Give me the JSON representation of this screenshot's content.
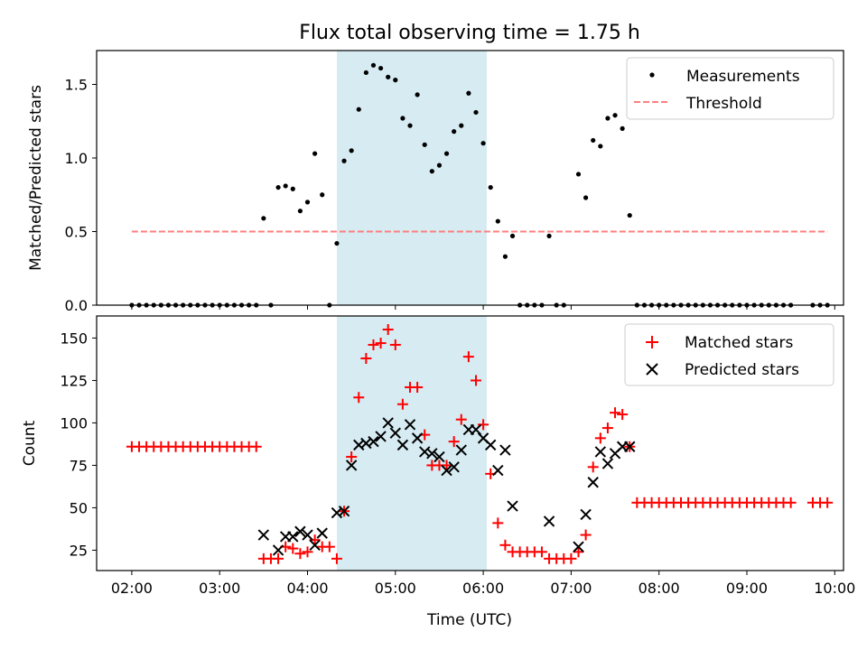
{
  "chart_data": [
    {
      "type": "scatter",
      "title": "Flux total observing time = 1.75 h",
      "xlabel": "",
      "ylabel": "Matched/Predicted stars",
      "xlim": [
        "01:36",
        "10:06"
      ],
      "ylim": [
        0,
        1.73
      ],
      "yticks": [
        "0.0",
        "0.5",
        "1.0",
        "1.5"
      ],
      "xticks": [
        "02:00",
        "03:00",
        "04:00",
        "05:00",
        "06:00",
        "07:00",
        "08:00",
        "09:00",
        "10:00"
      ],
      "show_xticklabels": false,
      "shaded_interval": {
        "start": "04:24",
        "end": "06:09",
        "color": "#add8e6"
      },
      "legend_position": "upper right",
      "series": [
        {
          "name": "Measurements",
          "marker": "dot",
          "color": "#000000",
          "points": [
            [
              "02:00",
              0
            ],
            [
              "02:05",
              0
            ],
            [
              "02:10",
              0
            ],
            [
              "02:15",
              0
            ],
            [
              "02:20",
              0
            ],
            [
              "02:25",
              0
            ],
            [
              "02:30",
              0
            ],
            [
              "02:35",
              0
            ],
            [
              "02:40",
              0
            ],
            [
              "02:45",
              0
            ],
            [
              "02:50",
              0
            ],
            [
              "02:55",
              0
            ],
            [
              "03:00",
              0
            ],
            [
              "03:05",
              0
            ],
            [
              "03:10",
              0
            ],
            [
              "03:15",
              0
            ],
            [
              "03:20",
              0
            ],
            [
              "03:25",
              0
            ],
            [
              "03:30",
              0.59
            ],
            [
              "03:35",
              0
            ],
            [
              "03:40",
              0.8
            ],
            [
              "03:45",
              0.81
            ],
            [
              "03:50",
              0.79
            ],
            [
              "03:55",
              0.64
            ],
            [
              "04:00",
              0.7
            ],
            [
              "04:05",
              1.03
            ],
            [
              "04:10",
              0.75
            ],
            [
              "04:15",
              0
            ],
            [
              "04:20",
              0.42
            ],
            [
              "04:25",
              0.98
            ],
            [
              "04:30",
              1.05
            ],
            [
              "04:35",
              1.33
            ],
            [
              "04:40",
              1.58
            ],
            [
              "04:45",
              1.63
            ],
            [
              "04:50",
              1.61
            ],
            [
              "04:55",
              1.55
            ],
            [
              "05:00",
              1.53
            ],
            [
              "05:05",
              1.27
            ],
            [
              "05:10",
              1.22
            ],
            [
              "05:15",
              1.43
            ],
            [
              "05:20",
              1.09
            ],
            [
              "05:25",
              0.91
            ],
            [
              "05:30",
              0.95
            ],
            [
              "05:35",
              1.03
            ],
            [
              "05:40",
              1.18
            ],
            [
              "05:45",
              1.22
            ],
            [
              "05:50",
              1.44
            ],
            [
              "05:55",
              1.31
            ],
            [
              "06:00",
              1.1
            ],
            [
              "06:05",
              0.8
            ],
            [
              "06:10",
              0.57
            ],
            [
              "06:15",
              0.33
            ],
            [
              "06:20",
              0.47
            ],
            [
              "06:25",
              0
            ],
            [
              "06:30",
              0
            ],
            [
              "06:35",
              0
            ],
            [
              "06:40",
              0
            ],
            [
              "06:45",
              0.47
            ],
            [
              "06:50",
              0
            ],
            [
              "06:55",
              0
            ],
            [
              "07:05",
              0.89
            ],
            [
              "07:10",
              0.73
            ],
            [
              "07:15",
              1.12
            ],
            [
              "07:20",
              1.08
            ],
            [
              "07:25",
              1.27
            ],
            [
              "07:30",
              1.29
            ],
            [
              "07:35",
              1.2
            ],
            [
              "07:40",
              0.61
            ],
            [
              "07:45",
              0
            ],
            [
              "07:50",
              0
            ],
            [
              "07:55",
              0
            ],
            [
              "08:00",
              0
            ],
            [
              "08:05",
              0
            ],
            [
              "08:10",
              0
            ],
            [
              "08:15",
              0
            ],
            [
              "08:20",
              0
            ],
            [
              "08:25",
              0
            ],
            [
              "08:30",
              0
            ],
            [
              "08:35",
              0
            ],
            [
              "08:40",
              0
            ],
            [
              "08:45",
              0
            ],
            [
              "08:50",
              0
            ],
            [
              "08:55",
              0
            ],
            [
              "09:00",
              0
            ],
            [
              "09:05",
              0
            ],
            [
              "09:10",
              0
            ],
            [
              "09:15",
              0
            ],
            [
              "09:20",
              0
            ],
            [
              "09:25",
              0
            ],
            [
              "09:30",
              0
            ],
            [
              "09:45",
              0
            ],
            [
              "09:50",
              0
            ],
            [
              "09:55",
              0
            ]
          ]
        },
        {
          "name": "Threshold",
          "type": "dashed-line",
          "color": "#ff7f7f",
          "points": [
            [
              "02:00",
              0.5
            ],
            [
              "09:55",
              0.5
            ]
          ]
        }
      ]
    },
    {
      "type": "scatter",
      "title": "",
      "xlabel": "Time (UTC)",
      "ylabel": "Count",
      "xlim": [
        "01:36",
        "10:06"
      ],
      "ylim": [
        13,
        163
      ],
      "yticks": [
        "25",
        "50",
        "75",
        "100",
        "125",
        "150"
      ],
      "xticks": [
        "02:00",
        "03:00",
        "04:00",
        "05:00",
        "06:00",
        "07:00",
        "08:00",
        "09:00",
        "10:00"
      ],
      "show_xticklabels": true,
      "shaded_interval": {
        "start": "04:24",
        "end": "06:09",
        "color": "#add8e6"
      },
      "legend_position": "upper right",
      "series": [
        {
          "name": "Matched stars",
          "marker": "plus",
          "color": "#ff0000",
          "points": [
            [
              "02:00",
              86
            ],
            [
              "02:05",
              86
            ],
            [
              "02:10",
              86
            ],
            [
              "02:15",
              86
            ],
            [
              "02:20",
              86
            ],
            [
              "02:25",
              86
            ],
            [
              "02:30",
              86
            ],
            [
              "02:35",
              86
            ],
            [
              "02:40",
              86
            ],
            [
              "02:45",
              86
            ],
            [
              "02:50",
              86
            ],
            [
              "02:55",
              86
            ],
            [
              "03:00",
              86
            ],
            [
              "03:05",
              86
            ],
            [
              "03:10",
              86
            ],
            [
              "03:15",
              86
            ],
            [
              "03:20",
              86
            ],
            [
              "03:25",
              86
            ],
            [
              "03:30",
              20
            ],
            [
              "03:35",
              20
            ],
            [
              "03:40",
              20
            ],
            [
              "03:45",
              27
            ],
            [
              "03:50",
              26
            ],
            [
              "03:55",
              23
            ],
            [
              "04:00",
              24
            ],
            [
              "04:05",
              31
            ],
            [
              "04:10",
              27
            ],
            [
              "04:15",
              27
            ],
            [
              "04:20",
              20
            ],
            [
              "04:25",
              48
            ],
            [
              "04:30",
              80
            ],
            [
              "04:35",
              115
            ],
            [
              "04:40",
              138
            ],
            [
              "04:45",
              146
            ],
            [
              "04:50",
              147
            ],
            [
              "04:55",
              155
            ],
            [
              "05:00",
              146
            ],
            [
              "05:05",
              111
            ],
            [
              "05:10",
              121
            ],
            [
              "05:15",
              121
            ],
            [
              "05:20",
              93
            ],
            [
              "05:25",
              75
            ],
            [
              "05:30",
              75
            ],
            [
              "05:35",
              75
            ],
            [
              "05:40",
              89
            ],
            [
              "05:45",
              102
            ],
            [
              "05:50",
              139
            ],
            [
              "05:55",
              125
            ],
            [
              "06:00",
              99
            ],
            [
              "06:05",
              70
            ],
            [
              "06:10",
              41
            ],
            [
              "06:15",
              28
            ],
            [
              "06:20",
              24
            ],
            [
              "06:25",
              24
            ],
            [
              "06:30",
              24
            ],
            [
              "06:35",
              24
            ],
            [
              "06:40",
              24
            ],
            [
              "06:45",
              20
            ],
            [
              "06:50",
              20
            ],
            [
              "06:55",
              20
            ],
            [
              "07:00",
              20
            ],
            [
              "07:05",
              24
            ],
            [
              "07:10",
              34
            ],
            [
              "07:15",
              74
            ],
            [
              "07:20",
              91
            ],
            [
              "07:25",
              97
            ],
            [
              "07:30",
              106
            ],
            [
              "07:35",
              105
            ],
            [
              "07:40",
              86
            ],
            [
              "07:45",
              53
            ],
            [
              "07:50",
              53
            ],
            [
              "07:55",
              53
            ],
            [
              "08:00",
              53
            ],
            [
              "08:05",
              53
            ],
            [
              "08:10",
              53
            ],
            [
              "08:15",
              53
            ],
            [
              "08:20",
              53
            ],
            [
              "08:25",
              53
            ],
            [
              "08:30",
              53
            ],
            [
              "08:35",
              53
            ],
            [
              "08:40",
              53
            ],
            [
              "08:45",
              53
            ],
            [
              "08:50",
              53
            ],
            [
              "08:55",
              53
            ],
            [
              "09:00",
              53
            ],
            [
              "09:05",
              53
            ],
            [
              "09:10",
              53
            ],
            [
              "09:15",
              53
            ],
            [
              "09:20",
              53
            ],
            [
              "09:25",
              53
            ],
            [
              "09:30",
              53
            ],
            [
              "09:45",
              53
            ],
            [
              "09:50",
              53
            ],
            [
              "09:55",
              53
            ]
          ]
        },
        {
          "name": "Predicted stars",
          "marker": "x",
          "color": "#000000",
          "points": [
            [
              "03:30",
              34
            ],
            [
              "03:40",
              25
            ],
            [
              "03:45",
              33
            ],
            [
              "03:50",
              33
            ],
            [
              "03:55",
              36
            ],
            [
              "04:00",
              34
            ],
            [
              "04:05",
              28
            ],
            [
              "04:10",
              35
            ],
            [
              "04:20",
              47
            ],
            [
              "04:25",
              48
            ],
            [
              "04:30",
              75
            ],
            [
              "04:35",
              87
            ],
            [
              "04:40",
              88
            ],
            [
              "04:45",
              89
            ],
            [
              "04:50",
              92
            ],
            [
              "04:55",
              100
            ],
            [
              "05:00",
              94
            ],
            [
              "05:05",
              87
            ],
            [
              "05:10",
              99
            ],
            [
              "05:15",
              91
            ],
            [
              "05:20",
              83
            ],
            [
              "05:25",
              82
            ],
            [
              "05:30",
              80
            ],
            [
              "05:35",
              72
            ],
            [
              "05:40",
              74
            ],
            [
              "05:45",
              84
            ],
            [
              "05:50",
              96
            ],
            [
              "05:55",
              96
            ],
            [
              "06:00",
              91
            ],
            [
              "06:05",
              87
            ],
            [
              "06:10",
              72
            ],
            [
              "06:15",
              84
            ],
            [
              "06:20",
              51
            ],
            [
              "06:45",
              42
            ],
            [
              "07:05",
              27
            ],
            [
              "07:10",
              46
            ],
            [
              "07:15",
              65
            ],
            [
              "07:20",
              83
            ],
            [
              "07:25",
              76
            ],
            [
              "07:30",
              82
            ],
            [
              "07:35",
              86
            ],
            [
              "07:40",
              86
            ]
          ]
        }
      ]
    }
  ]
}
